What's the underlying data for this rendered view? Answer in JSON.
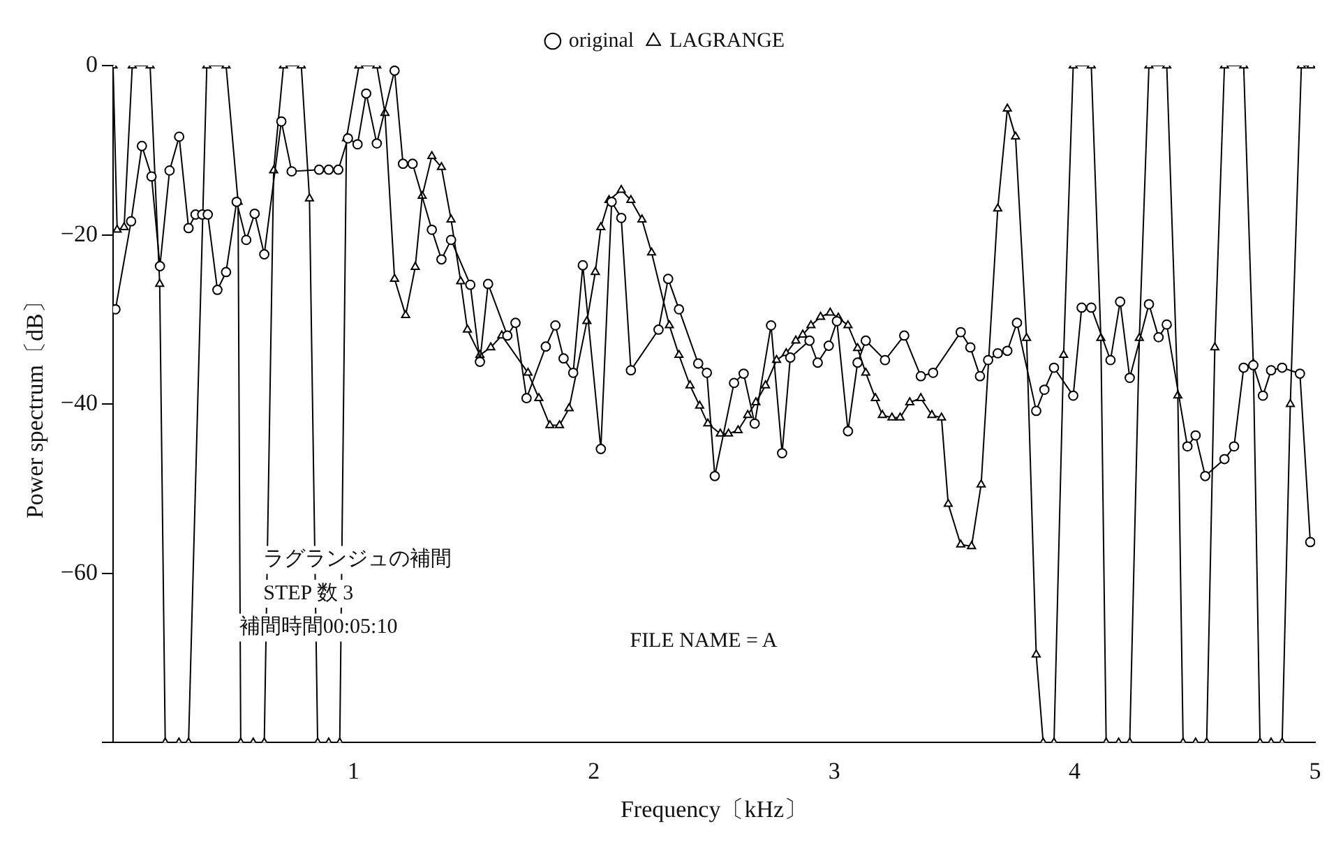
{
  "chart_data": {
    "type": "line",
    "xlabel": "Frequency〔kHz〕",
    "ylabel": "Power spectrum〔dB〕",
    "xlim": [
      0,
      5
    ],
    "ylim": [
      -80,
      0
    ],
    "xticks": [
      {
        "value": 0,
        "label": null
      },
      1,
      2,
      3,
      4,
      5
    ],
    "yticks": [
      0,
      -20,
      -40,
      -60,
      {
        "value": -80,
        "label": null
      }
    ],
    "grid": false,
    "legend": "top",
    "line_style": "solid",
    "annotations": [
      "ラグランジュの補間",
      "STEP 数 3",
      "補間時間00:05:10",
      "FILE NAME = A"
    ],
    "series": [
      {
        "name": "original",
        "color": "#000000",
        "marker": "circle",
        "x": [
          0.01,
          0.075,
          0.12,
          0.16,
          0.195,
          0.235,
          0.275,
          0.314,
          0.343,
          0.371,
          0.394,
          0.434,
          0.47,
          0.514,
          0.554,
          0.589,
          0.629,
          0.7,
          0.743,
          0.857,
          0.897,
          0.937,
          0.977,
          1.017,
          1.053,
          1.097,
          1.171,
          1.206,
          1.246,
          1.326,
          1.366,
          1.406,
          1.486,
          1.526,
          1.56,
          1.64,
          1.674,
          1.72,
          1.8,
          1.84,
          1.874,
          1.914,
          1.954,
          2.029,
          2.074,
          2.114,
          2.154,
          2.269,
          2.309,
          2.354,
          2.434,
          2.47,
          2.503,
          2.583,
          2.623,
          2.669,
          2.737,
          2.783,
          2.817,
          2.897,
          2.931,
          2.977,
          3.011,
          3.057,
          3.097,
          3.131,
          3.211,
          3.291,
          3.36,
          3.411,
          3.526,
          3.566,
          3.606,
          3.64,
          3.68,
          3.72,
          3.76,
          3.84,
          3.874,
          3.914,
          3.994,
          4.029,
          4.069,
          4.149,
          4.189,
          4.229,
          4.309,
          4.349,
          4.383,
          4.469,
          4.503,
          4.543,
          4.623,
          4.663,
          4.703,
          4.743,
          4.783,
          4.817,
          4.863,
          4.937,
          4.98
        ],
        "values": [
          -28.8,
          -18.4,
          -9.5,
          -13.1,
          -23.7,
          -12.4,
          -8.4,
          -19.2,
          -17.6,
          -17.6,
          -17.6,
          -26.5,
          -24.4,
          -16.1,
          -20.6,
          -17.5,
          -22.3,
          -6.6,
          -12.5,
          -12.3,
          -12.3,
          -12.3,
          -8.6,
          -9.3,
          -3.3,
          -9.2,
          -0.6,
          -11.6,
          -11.6,
          -19.4,
          -22.9,
          -20.6,
          -25.9,
          -35,
          -25.8,
          -31.9,
          -30.4,
          -39.3,
          -33.2,
          -30.7,
          -34.6,
          -36.3,
          -23.6,
          -45.3,
          -16.1,
          -18,
          -36,
          -31.2,
          -25.2,
          -28.8,
          -35.2,
          -36.3,
          -48.5,
          -37.5,
          -36.4,
          -42.3,
          -30.7,
          -45.8,
          -34.5,
          -32.5,
          -35.1,
          -33.1,
          -30.2,
          -43.2,
          -35.1,
          -32.5,
          -34.8,
          -31.9,
          -36.7,
          -36.3,
          -31.5,
          -33.3,
          -36.7,
          -34.8,
          -34,
          -33.7,
          -30.4,
          -40.8,
          -38.3,
          -35.7,
          -39,
          -28.6,
          -28.6,
          -34.8,
          -27.9,
          -36.9,
          -28.2,
          -32.1,
          -30.6,
          -45,
          -43.7,
          -48.5,
          -46.5,
          -45,
          -35.7,
          -35.4,
          -39,
          -36,
          -35.7,
          -36.4,
          -56.3
        ]
      },
      {
        "name": "LAGRANGE",
        "color": "#000000",
        "marker": "triangle",
        "x": [
          0,
          0.017,
          0.046,
          0.08,
          0.154,
          0.194,
          0.217,
          0.274,
          0.314,
          0.39,
          0.47,
          0.52,
          0.531,
          0.583,
          0.629,
          0.668,
          0.709,
          0.783,
          0.817,
          0.851,
          0.897,
          0.943,
          0.971,
          1.023,
          1.097,
          1.131,
          1.171,
          1.217,
          1.257,
          1.286,
          1.326,
          1.366,
          1.406,
          1.446,
          1.474,
          1.526,
          1.571,
          1.617,
          1.726,
          1.771,
          1.817,
          1.857,
          1.897,
          1.971,
          2.006,
          2.029,
          2.063,
          2.114,
          2.154,
          2.2,
          2.24,
          2.314,
          2.354,
          2.4,
          2.44,
          2.474,
          2.526,
          2.56,
          2.6,
          2.64,
          2.674,
          2.714,
          2.76,
          2.8,
          2.84,
          2.869,
          2.903,
          2.943,
          2.983,
          3.017,
          3.057,
          3.097,
          3.131,
          3.171,
          3.2,
          3.24,
          3.274,
          3.314,
          3.36,
          3.406,
          3.446,
          3.474,
          3.526,
          3.571,
          3.611,
          3.68,
          3.72,
          3.754,
          3.8,
          3.84,
          3.869,
          3.914,
          3.954,
          3.994,
          4.069,
          4.109,
          4.131,
          4.183,
          4.229,
          4.269,
          4.309,
          4.383,
          4.429,
          4.451,
          4.503,
          4.549,
          4.583,
          4.623,
          4.703,
          4.743,
          4.771,
          4.817,
          4.863,
          4.897,
          4.943,
          4.983
        ],
        "values": [
          0,
          -19.4,
          -19.1,
          0,
          0,
          -25.8,
          -80,
          -80,
          -80,
          0,
          0,
          -16.1,
          -80,
          -80,
          -80,
          -12.4,
          0,
          0,
          -15.7,
          -80,
          -80,
          -80,
          -8.6,
          0,
          0,
          -5.6,
          -25.2,
          -29.5,
          -23.8,
          -15.4,
          -10.7,
          -12,
          -18.2,
          -25.5,
          -31.2,
          -34.2,
          -33.3,
          -31.9,
          -36.3,
          -39.3,
          -42.5,
          -42.5,
          -40.5,
          -30.2,
          -24.4,
          -19.1,
          -15.9,
          -14.7,
          -15.9,
          -18.2,
          -22.1,
          -30.7,
          -34.2,
          -37.8,
          -40.2,
          -42.3,
          -43.5,
          -43.5,
          -43.1,
          -41.3,
          -39.8,
          -37.8,
          -34.8,
          -34,
          -32.5,
          -31.8,
          -30.7,
          -29.7,
          -29.2,
          -29.8,
          -30.7,
          -33.4,
          -36.3,
          -39.3,
          -41.3,
          -41.6,
          -41.6,
          -39.8,
          -39.3,
          -41.3,
          -41.6,
          -51.8,
          -56.6,
          -56.8,
          -49.5,
          -16.9,
          -5.1,
          -8.4,
          -32.2,
          -69.6,
          -80,
          -80,
          -34.2,
          0,
          0,
          -32.2,
          -80,
          -80,
          -80,
          -32.2,
          0,
          0,
          -39,
          -80,
          -80,
          -80,
          -33.3,
          0,
          0,
          -35.2,
          -80,
          -80,
          -80,
          -40,
          0,
          0
        ]
      }
    ]
  }
}
